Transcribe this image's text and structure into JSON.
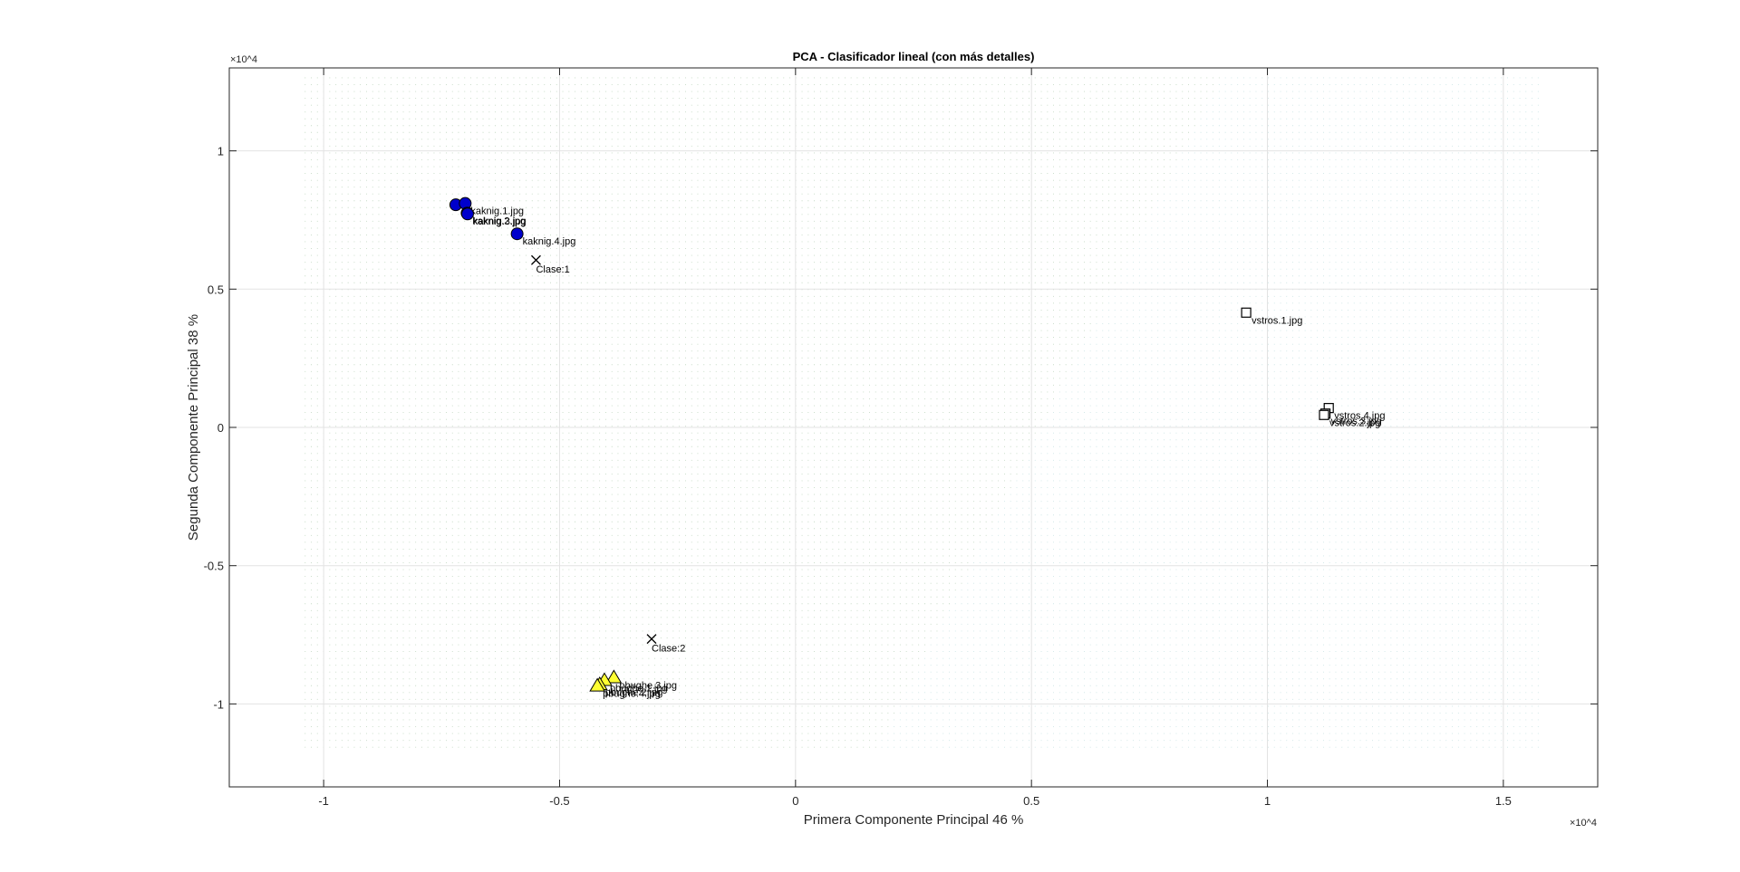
{
  "chart_data": {
    "type": "scatter",
    "title": "PCA - Clasificador lineal (con más detalles)",
    "xlabel": "Primera Componente Principal 46 %",
    "ylabel": "Segunda Componente Principal 38 %",
    "x_multiplier": "×10^4",
    "y_multiplier": "×10^4",
    "xlim": [
      -1.2,
      1.7
    ],
    "ylim": [
      -1.3,
      1.3
    ],
    "x_ticks": [
      -1,
      -0.5,
      0,
      0.5,
      1,
      1.5
    ],
    "y_ticks": [
      -1,
      -0.5,
      0,
      0.5,
      1
    ],
    "x_tick_labels": [
      "-1",
      "-0.5",
      "0",
      "0.5",
      "1",
      "1.5"
    ],
    "y_tick_labels": [
      "-1",
      "-0.5",
      "0",
      "0.5",
      "1"
    ],
    "grid": true,
    "background_dots": true,
    "series": [
      {
        "marker": "circle",
        "color": "#0000cc",
        "points": [
          {
            "x": -0.72,
            "y": 0.805,
            "label": ""
          },
          {
            "x": -0.7,
            "y": 0.81,
            "label": "kaknig.1.jpg"
          },
          {
            "x": -0.696,
            "y": 0.775,
            "label": "kaknig.2.jpg"
          },
          {
            "x": -0.695,
            "y": 0.772,
            "label": "kaknig.3.jpg"
          },
          {
            "x": -0.59,
            "y": 0.7,
            "label": "kaknig.4.jpg"
          }
        ]
      },
      {
        "marker": "triangle",
        "color": "#ffff33",
        "points": [
          {
            "x": -0.385,
            "y": -0.905,
            "label": "pbughe.3.jpg"
          },
          {
            "x": -0.405,
            "y": -0.915,
            "label": "pbughe.1.jpg"
          },
          {
            "x": -0.415,
            "y": -0.93,
            "label": "pbughe.2.jpg"
          },
          {
            "x": -0.42,
            "y": -0.935,
            "label": "pbughe.4.jpg"
          }
        ]
      },
      {
        "marker": "square",
        "color": "#ffffff",
        "points": [
          {
            "x": 0.955,
            "y": 0.415,
            "label": "vstros.1.jpg"
          },
          {
            "x": 1.13,
            "y": 0.07,
            "label": "vstros.4.jpg"
          },
          {
            "x": 1.123,
            "y": 0.05,
            "label": "vstros.3.jpg"
          },
          {
            "x": 1.12,
            "y": 0.045,
            "label": "vstros.2.jpg"
          }
        ]
      }
    ],
    "centroids": [
      {
        "x": -0.55,
        "y": 0.605,
        "label": "Clase:1"
      },
      {
        "x": -0.305,
        "y": -0.765,
        "label": "Clase:2"
      }
    ]
  }
}
